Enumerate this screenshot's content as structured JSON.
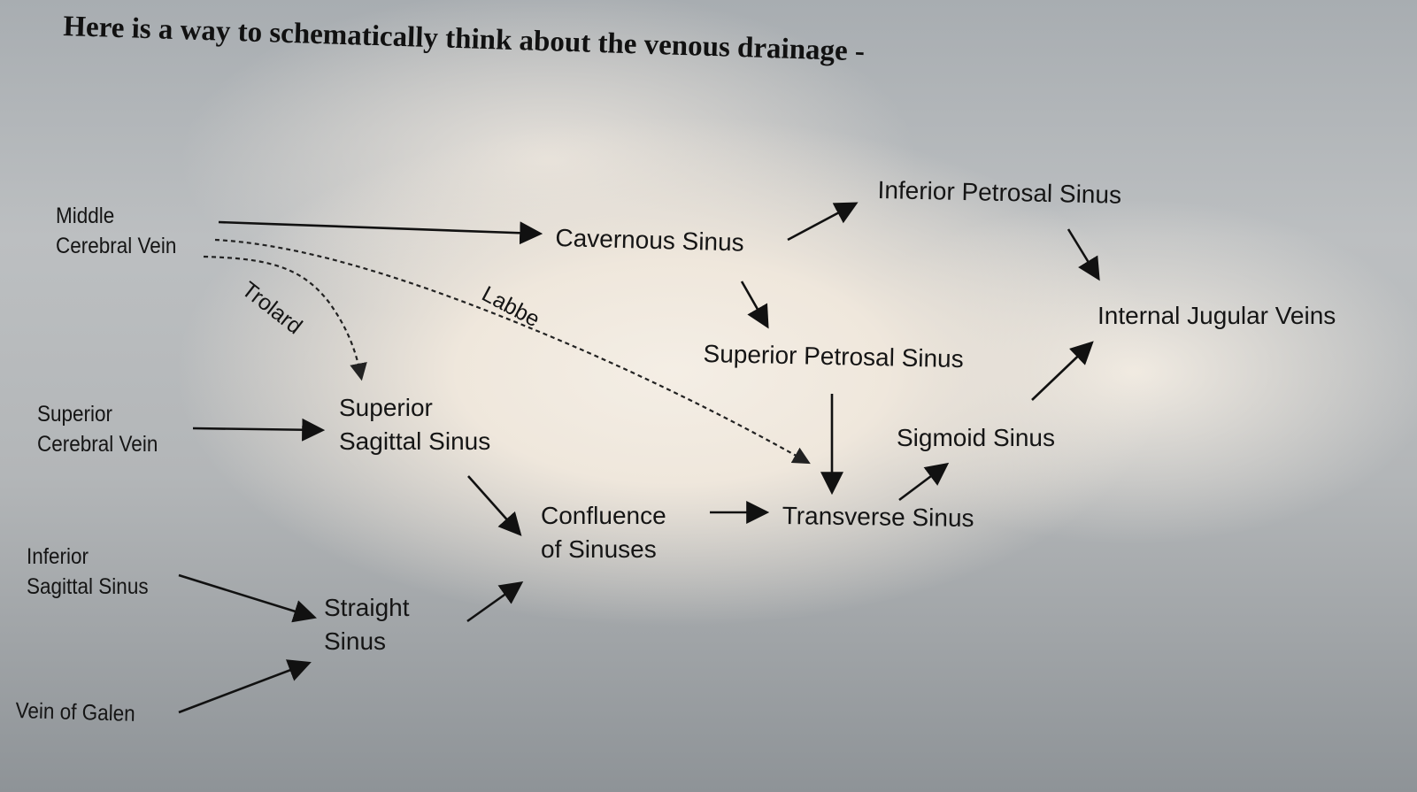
{
  "title": "Here is a way to schematically think about the venous drainage -",
  "nodes": {
    "middle_cerebral_vein": [
      "Middle",
      "Cerebral Vein"
    ],
    "cavernous_sinus": "Cavernous Sinus",
    "inferior_petrosal_sinus": "Inferior Petrosal Sinus",
    "internal_jugular_veins": "Internal Jugular Veins",
    "superior_petrosal_sinus": "Superior Petrosal Sinus",
    "superior_cerebral_vein": [
      "Superior",
      "Cerebral Vein"
    ],
    "superior_sagittal_sinus": [
      "Superior",
      "Sagittal Sinus"
    ],
    "sigmoid_sinus": "Sigmoid Sinus",
    "confluence_of_sinuses": [
      "Confluence",
      "of Sinuses"
    ],
    "transverse_sinus": "Transverse Sinus",
    "inferior_sagittal_sinus": [
      "Inferior",
      "Sagittal Sinus"
    ],
    "straight_sinus": [
      "Straight",
      "Sinus"
    ],
    "vein_of_galen": "Vein of Galen"
  },
  "edge_labels": {
    "trolard": "Trolard",
    "labbe": "Labbe"
  },
  "edges": [
    {
      "from": "middle_cerebral_vein",
      "to": "cavernous_sinus",
      "style": "solid"
    },
    {
      "from": "middle_cerebral_vein",
      "to": "superior_sagittal_sinus",
      "style": "dashed",
      "label": "trolard"
    },
    {
      "from": "middle_cerebral_vein",
      "to": "transverse_sinus",
      "style": "dashed",
      "label": "labbe"
    },
    {
      "from": "cavernous_sinus",
      "to": "inferior_petrosal_sinus",
      "style": "solid"
    },
    {
      "from": "cavernous_sinus",
      "to": "superior_petrosal_sinus",
      "style": "solid"
    },
    {
      "from": "inferior_petrosal_sinus",
      "to": "internal_jugular_veins",
      "style": "solid"
    },
    {
      "from": "superior_petrosal_sinus",
      "to": "transverse_sinus",
      "style": "solid"
    },
    {
      "from": "superior_cerebral_vein",
      "to": "superior_sagittal_sinus",
      "style": "solid"
    },
    {
      "from": "superior_sagittal_sinus",
      "to": "confluence_of_sinuses",
      "style": "solid"
    },
    {
      "from": "inferior_sagittal_sinus",
      "to": "straight_sinus",
      "style": "solid"
    },
    {
      "from": "vein_of_galen",
      "to": "straight_sinus",
      "style": "solid"
    },
    {
      "from": "straight_sinus",
      "to": "confluence_of_sinuses",
      "style": "solid"
    },
    {
      "from": "confluence_of_sinuses",
      "to": "transverse_sinus",
      "style": "solid"
    },
    {
      "from": "transverse_sinus",
      "to": "sigmoid_sinus",
      "style": "solid"
    },
    {
      "from": "sigmoid_sinus",
      "to": "internal_jugular_veins",
      "style": "solid"
    }
  ]
}
